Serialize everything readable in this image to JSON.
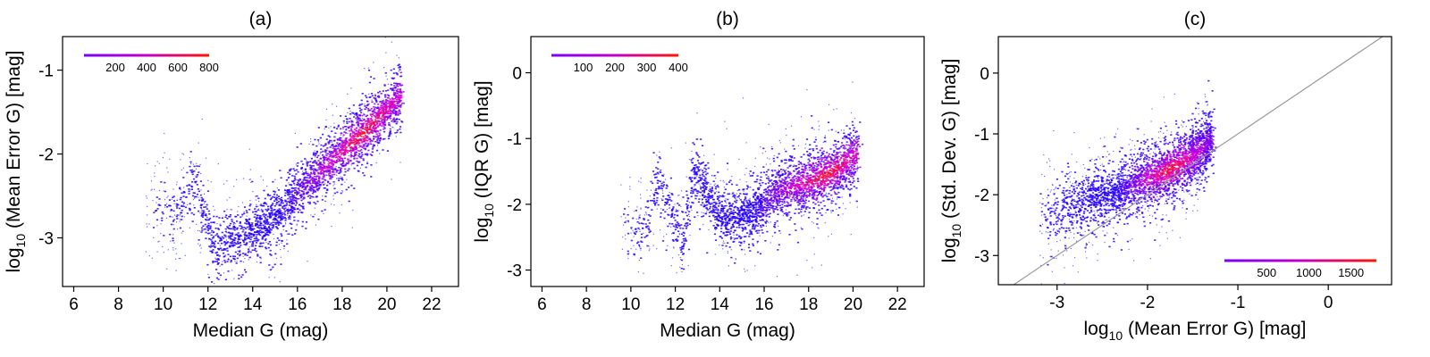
{
  "chart_data": [
    {
      "type": "heatmap",
      "title": "(a)",
      "xlabel": "Median G (mag)",
      "ylabel_pre": "log",
      "ylabel_sub": "10",
      "ylabel_post": " (Mean Error G) [mag]",
      "xlim": [
        5.5,
        23.2
      ],
      "ylim": [
        -3.58,
        -0.6
      ],
      "xticks": [
        6,
        8,
        10,
        12,
        14,
        16,
        18,
        20,
        22
      ],
      "yticks": [
        -3,
        -2,
        -1
      ],
      "colorbar": {
        "range": [
          0,
          800
        ],
        "ticks": [
          200,
          400,
          600,
          800
        ],
        "min_color": "#7a00ff",
        "max_color": "#ff1500"
      },
      "density_ridge": {
        "x": [
          9.2,
          10.5,
          11.3,
          12.3,
          13.5,
          15,
          16,
          17,
          18,
          19,
          20,
          20.6
        ],
        "y": [
          -2.6,
          -2.7,
          -2.3,
          -3.1,
          -2.95,
          -2.75,
          -2.45,
          -2.2,
          -1.95,
          -1.72,
          -1.45,
          -1.3
        ],
        "peak_x": 18.9
      }
    },
    {
      "type": "heatmap",
      "title": "(b)",
      "xlabel": "Median G (mag)",
      "ylabel_pre": "log",
      "ylabel_sub": "10",
      "ylabel_post": " (IQR G) [mag]",
      "xlim": [
        5.5,
        23.2
      ],
      "ylim": [
        -3.25,
        0.55
      ],
      "xticks": [
        6,
        8,
        10,
        12,
        14,
        16,
        18,
        20,
        22
      ],
      "yticks": [
        -3,
        -2,
        -1,
        0
      ],
      "colorbar": {
        "range": [
          0,
          400
        ],
        "ticks": [
          100,
          200,
          300,
          400
        ],
        "min_color": "#7a00ff",
        "max_color": "#ff1500"
      },
      "density_ridge": {
        "x": [
          9.5,
          10.5,
          11.2,
          12.3,
          12.8,
          14,
          15.5,
          16.5,
          18,
          19,
          20.2
        ],
        "y": [
          -2.3,
          -2.5,
          -1.6,
          -2.6,
          -1.5,
          -2.2,
          -2.1,
          -1.8,
          -1.65,
          -1.5,
          -1.2
        ],
        "peak_x": 18.8
      }
    },
    {
      "type": "heatmap",
      "title": "(c)",
      "xlabel_pre": "log",
      "xlabel_sub": "10",
      "xlabel_post": " (Mean Error G) [mag]",
      "ylabel_pre": "log",
      "ylabel_sub": "10",
      "ylabel_post": " (Std. Dev. G) [mag]",
      "xlim": [
        -3.65,
        0.7
      ],
      "ylim": [
        -3.48,
        0.6
      ],
      "xticks": [
        -3,
        -2,
        -1,
        0
      ],
      "yticks": [
        -3,
        -2,
        -1,
        0
      ],
      "identity_line": true,
      "colorbar": {
        "range": [
          0,
          1800
        ],
        "ticks": [
          500,
          1000,
          1500
        ],
        "min_color": "#7a00ff",
        "max_color": "#ff1500"
      },
      "density_ridge": {
        "x": [
          -3.2,
          -3.0,
          -2.6,
          -2.2,
          -1.8,
          -1.5,
          -1.3
        ],
        "y": [
          -2.35,
          -2.25,
          -2.05,
          -1.85,
          -1.6,
          -1.35,
          -1.1
        ],
        "peak_x": -1.75
      }
    }
  ]
}
